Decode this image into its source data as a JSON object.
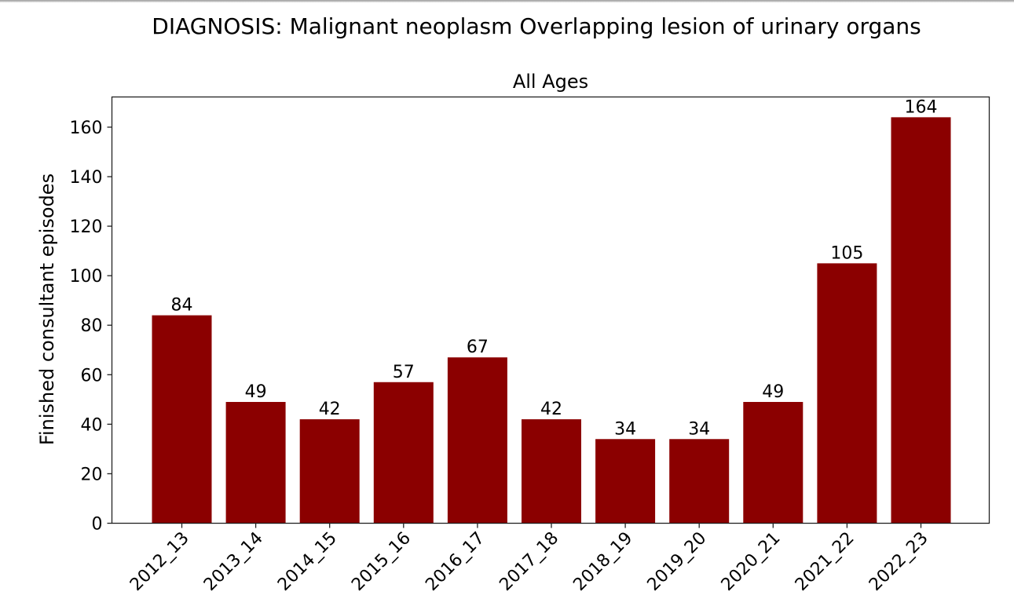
{
  "chart_data": {
    "type": "bar",
    "title": "DIAGNOSIS: Malignant neoplasm Overlapping lesion of urinary organs",
    "subtitle": "All Ages",
    "xlabel": "",
    "ylabel": "Finished consultant episodes",
    "categories": [
      "2012_13",
      "2013_14",
      "2014_15",
      "2015_16",
      "2016_17",
      "2017_18",
      "2018_19",
      "2019_20",
      "2020_21",
      "2021_22",
      "2022_23"
    ],
    "values": [
      84,
      49,
      42,
      57,
      67,
      42,
      34,
      34,
      49,
      105,
      164
    ],
    "ylim": [
      0,
      172.2
    ],
    "yticks": [
      0,
      20,
      40,
      60,
      80,
      100,
      120,
      140,
      160
    ],
    "grid": false,
    "bar_color": "#8b0000",
    "data_labels": true
  }
}
